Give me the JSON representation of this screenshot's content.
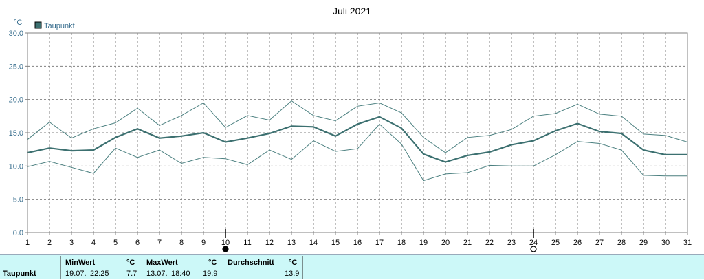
{
  "chart_data": {
    "type": "line",
    "title": "Juli 2021",
    "unit": "°C",
    "legend": "Taupunkt",
    "legend_position": "top-left",
    "grid": true,
    "ylim": [
      0,
      30
    ],
    "yticks": [
      "0.0",
      "5.0",
      "10.0",
      "15.0",
      "20.0",
      "25.0",
      "30.0"
    ],
    "x": [
      1,
      2,
      3,
      4,
      5,
      6,
      7,
      8,
      9,
      10,
      11,
      12,
      13,
      14,
      15,
      16,
      17,
      18,
      19,
      20,
      21,
      22,
      23,
      24,
      25,
      26,
      27,
      28,
      29,
      30,
      31
    ],
    "series": [
      {
        "name": "Taupunkt",
        "role": "mean",
        "values": [
          12.0,
          12.7,
          12.3,
          12.4,
          14.3,
          15.6,
          14.2,
          14.5,
          15.0,
          13.6,
          14.2,
          14.9,
          16.0,
          15.9,
          14.5,
          16.3,
          17.4,
          15.7,
          11.8,
          10.6,
          11.6,
          12.1,
          13.2,
          13.8,
          15.3,
          16.4,
          15.2,
          14.9,
          12.4,
          11.7,
          11.7
        ]
      },
      {
        "role": "max",
        "values": [
          14.0,
          16.6,
          14.2,
          15.6,
          16.5,
          18.7,
          16.1,
          17.6,
          19.5,
          15.8,
          17.6,
          16.9,
          19.8,
          17.6,
          16.8,
          19.0,
          19.5,
          18.0,
          14.3,
          12.0,
          14.3,
          14.6,
          15.5,
          17.5,
          17.9,
          19.3,
          17.8,
          17.5,
          14.8,
          14.6,
          13.6
        ]
      },
      {
        "role": "min",
        "values": [
          9.9,
          10.7,
          9.8,
          8.9,
          12.7,
          11.3,
          12.4,
          10.4,
          11.3,
          11.1,
          10.2,
          12.4,
          11.0,
          13.8,
          12.2,
          12.6,
          16.3,
          13.3,
          7.8,
          8.8,
          9.0,
          10.1,
          10.0,
          10.0,
          11.7,
          13.7,
          13.4,
          12.4,
          8.6,
          8.5,
          8.5
        ]
      }
    ],
    "moon_phases": [
      {
        "day": 10,
        "phase": "new"
      },
      {
        "day": 24,
        "phase": "full"
      }
    ]
  },
  "stats": {
    "row_label": "Taupunkt",
    "min": {
      "title": "MinWert",
      "unit": "°C",
      "date": "19.07.",
      "time": "22:25",
      "value": "7.7"
    },
    "max": {
      "title": "MaxWert",
      "unit": "°C",
      "date": "13.07.",
      "time": "18:40",
      "value": "19.9"
    },
    "avg": {
      "title": "Durchschnitt",
      "unit": "°C",
      "value": "13.9"
    }
  },
  "colors": {
    "mean": "#3c7070",
    "band": "#4a7f7f",
    "grid": "#808080",
    "panel": "#ccf8f8"
  }
}
